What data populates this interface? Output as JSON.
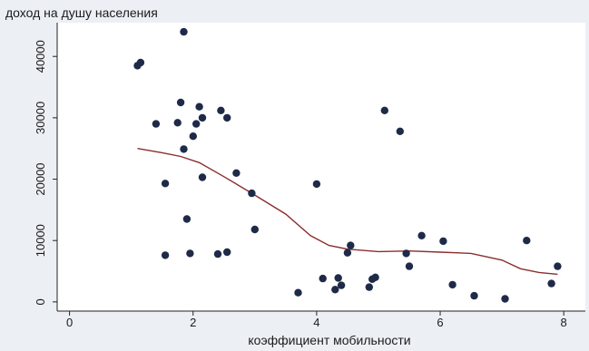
{
  "chart_data": {
    "type": "scatter",
    "title": "",
    "ylabel": "доход на душу населения",
    "xlabel": "коэффициент мобильности",
    "xlim": [
      -0.2,
      8.35
    ],
    "ylim": [
      -1500,
      45500
    ],
    "x_ticks": [
      0,
      2,
      4,
      6,
      8
    ],
    "y_ticks": [
      0,
      10000,
      20000,
      30000,
      40000
    ],
    "grid": false,
    "legend": "none",
    "colors": {
      "points": "#1e2a47",
      "trend": "#8b2e2e",
      "plot_background": "#ffffff",
      "outer_background": "#ecf0f5",
      "axis": "#222222"
    },
    "series": [
      {
        "type": "scatter",
        "points": [
          [
            1.1,
            38500
          ],
          [
            1.15,
            39000
          ],
          [
            1.4,
            29000
          ],
          [
            1.55,
            19300
          ],
          [
            1.55,
            7600
          ],
          [
            1.75,
            29200
          ],
          [
            1.8,
            32500
          ],
          [
            1.85,
            24900
          ],
          [
            1.85,
            44000
          ],
          [
            1.9,
            13500
          ],
          [
            1.95,
            7900
          ],
          [
            2.0,
            27000
          ],
          [
            2.05,
            29000
          ],
          [
            2.1,
            31800
          ],
          [
            2.15,
            30000
          ],
          [
            2.15,
            20300
          ],
          [
            2.4,
            7800
          ],
          [
            2.45,
            31200
          ],
          [
            2.55,
            8100
          ],
          [
            2.55,
            30000
          ],
          [
            2.7,
            21000
          ],
          [
            2.95,
            17700
          ],
          [
            3.0,
            11800
          ],
          [
            3.7,
            1500
          ],
          [
            4.0,
            19200
          ],
          [
            4.1,
            3800
          ],
          [
            4.3,
            2000
          ],
          [
            4.35,
            3900
          ],
          [
            4.4,
            2700
          ],
          [
            4.5,
            8000
          ],
          [
            4.55,
            9200
          ],
          [
            4.85,
            2400
          ],
          [
            4.9,
            3700
          ],
          [
            4.95,
            4000
          ],
          [
            5.1,
            31200
          ],
          [
            5.35,
            27800
          ],
          [
            5.45,
            7900
          ],
          [
            5.5,
            5800
          ],
          [
            5.7,
            10800
          ],
          [
            6.05,
            9900
          ],
          [
            6.2,
            2800
          ],
          [
            6.55,
            1000
          ],
          [
            7.05,
            500
          ],
          [
            7.4,
            10000
          ],
          [
            7.8,
            3000
          ],
          [
            7.9,
            5800
          ]
        ]
      },
      {
        "type": "line",
        "points": [
          [
            1.1,
            25000
          ],
          [
            1.5,
            24300
          ],
          [
            1.8,
            23700
          ],
          [
            2.1,
            22700
          ],
          [
            2.5,
            20400
          ],
          [
            3.0,
            17400
          ],
          [
            3.5,
            14300
          ],
          [
            3.9,
            10800
          ],
          [
            4.2,
            9200
          ],
          [
            4.5,
            8600
          ],
          [
            5.0,
            8200
          ],
          [
            5.5,
            8300
          ],
          [
            6.0,
            8100
          ],
          [
            6.5,
            7900
          ],
          [
            7.0,
            6800
          ],
          [
            7.3,
            5400
          ],
          [
            7.6,
            4800
          ],
          [
            7.9,
            4500
          ]
        ]
      }
    ]
  }
}
